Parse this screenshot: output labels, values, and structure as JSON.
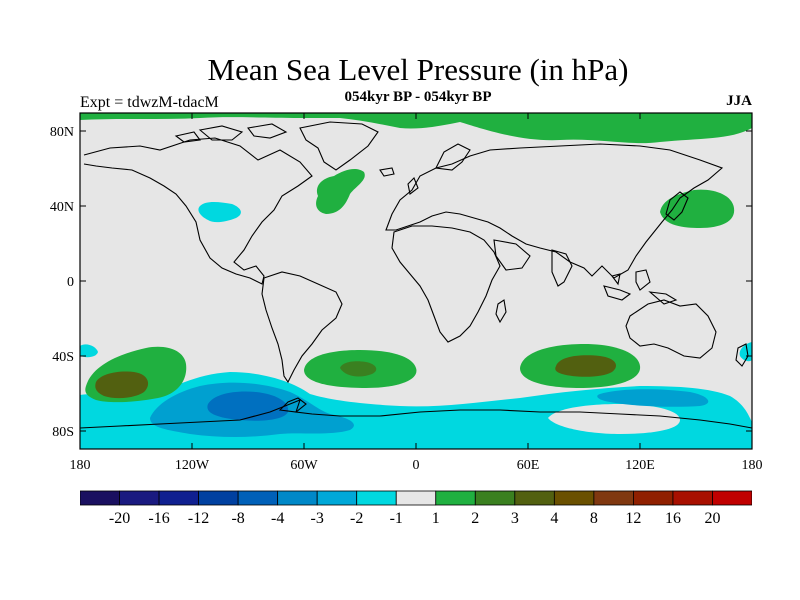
{
  "map": {
    "title": "Mean Sea Level Pressure (in hPa)",
    "subtitle": "054kyr BP - 054kyr BP",
    "experiment_label": "Expt = tdwzM-tdacM",
    "season_label": "JJA",
    "lon_ticks": [
      "180",
      "120W",
      "60W",
      "0",
      "60E",
      "120E",
      "180"
    ],
    "lat_ticks": [
      "80N",
      "40N",
      "0",
      "40S",
      "80S"
    ],
    "colors": {
      "neutral": "#e6e6e6",
      "c_pos1": "#20b040",
      "c_pos2": "#3a8020",
      "c_pos3": "#526010",
      "c_neg1": "#00d8e0",
      "c_neg2": "#00a0d0",
      "c_neg3": "#0070c0"
    }
  },
  "legend": {
    "colors": [
      "#1a1060",
      "#1a1a80",
      "#102090",
      "#0040a0",
      "#0060b8",
      "#0088c8",
      "#00a8d8",
      "#00d8e0",
      "#e6e6e6",
      "#20b040",
      "#3a8020",
      "#526010",
      "#6a5000",
      "#803810",
      "#902000",
      "#a81000",
      "#c00000"
    ],
    "labels": [
      "-20",
      "-16",
      "-12",
      "-8",
      "-4",
      "-3",
      "-2",
      "-1",
      "1",
      "2",
      "3",
      "4",
      "8",
      "12",
      "16",
      "20"
    ]
  }
}
